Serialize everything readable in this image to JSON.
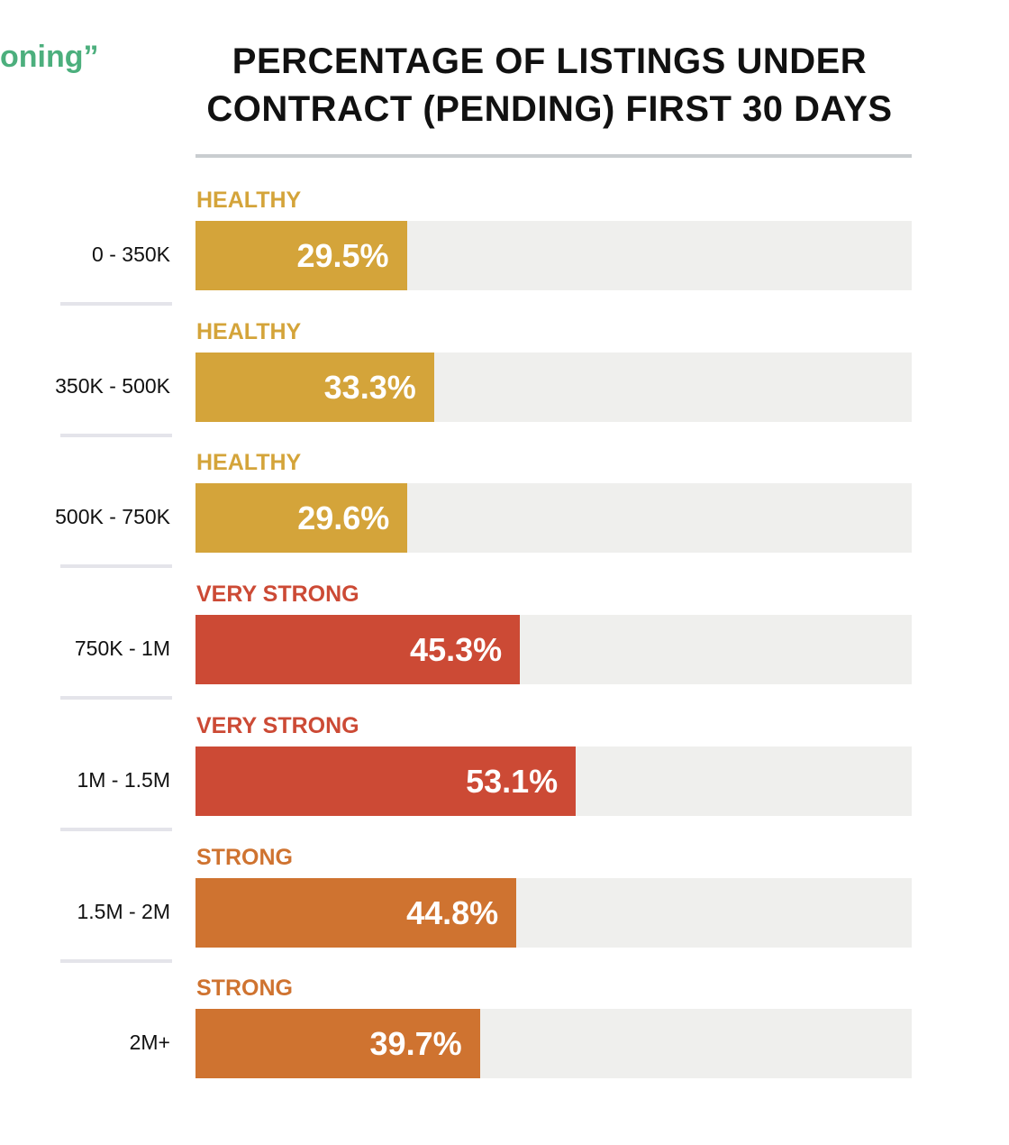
{
  "fragment_text": "oning”",
  "chart_data": {
    "type": "bar",
    "orientation": "horizontal",
    "title": "PERCENTAGE OF LISTINGS UNDER CONTRACT (PENDING) FIRST 30 DAYS",
    "title_lines": [
      "PERCENTAGE OF LISTINGS UNDER",
      "CONTRACT (PENDING) FIRST 30 DAYS"
    ],
    "xlim": [
      0,
      100
    ],
    "unit": "%",
    "categories": [
      "0 - 350K",
      "350K - 500K",
      "500K - 750K",
      "750K - 1M",
      "1M - 1.5M",
      "1.5M - 2M",
      "2M+"
    ],
    "values": [
      29.5,
      33.3,
      29.6,
      45.3,
      53.1,
      44.8,
      39.7
    ],
    "value_labels": [
      "29.5%",
      "33.3%",
      "29.6%",
      "45.3%",
      "53.1%",
      "44.8%",
      "39.7%"
    ],
    "statuses": [
      "HEALTHY",
      "HEALTHY",
      "HEALTHY",
      "VERY STRONG",
      "VERY STRONG",
      "STRONG",
      "STRONG"
    ]
  },
  "colors": {
    "HEALTHY": "#d4a43a",
    "VERY STRONG": "#cc4a35",
    "STRONG": "#cf7330",
    "track": "#efefed",
    "accent_green": "#4caf7d"
  }
}
